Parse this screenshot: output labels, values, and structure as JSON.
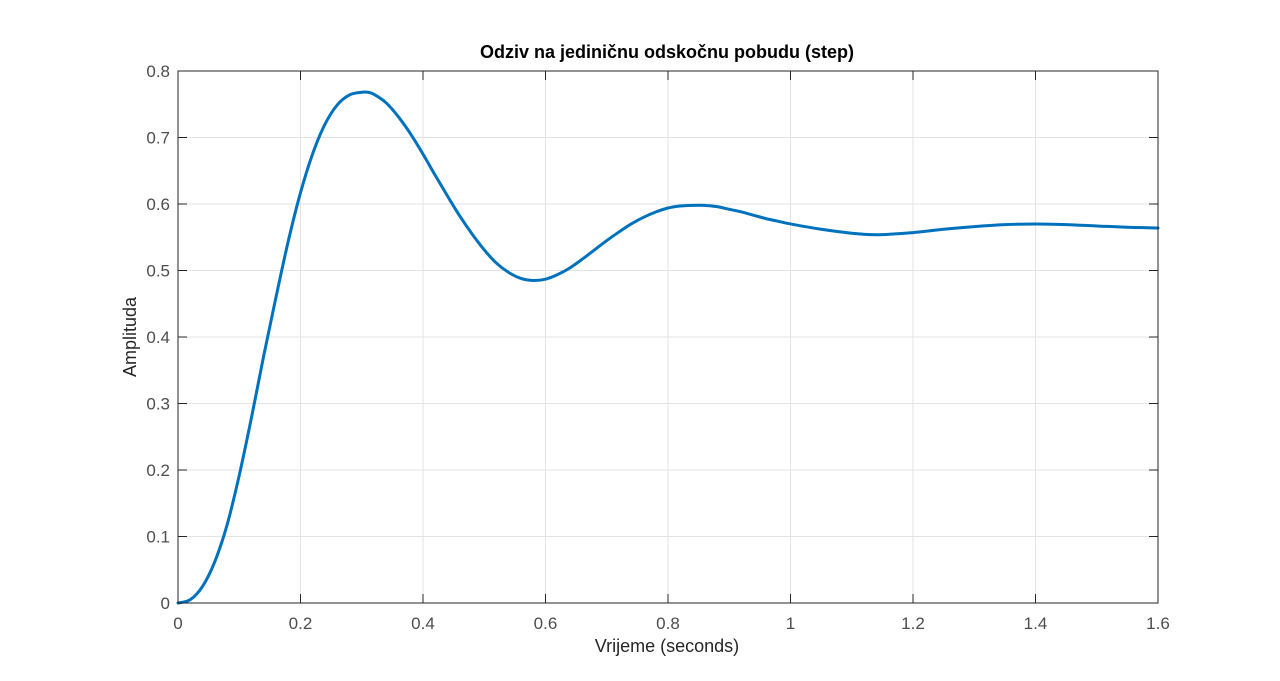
{
  "chart_data": {
    "type": "line",
    "title": "Odziv na jediničnu odskočnu pobudu (step)",
    "xlabel": "Vrijeme (seconds)",
    "ylabel": "Amplituda",
    "xlim": [
      0,
      1.6
    ],
    "ylim": [
      0,
      0.8
    ],
    "x_ticks": [
      0,
      0.2,
      0.4,
      0.6,
      0.8,
      1.0,
      1.2,
      1.4,
      1.6
    ],
    "x_tick_labels": [
      "0",
      "0.2",
      "0.4",
      "0.6",
      "0.8",
      "1",
      "1.2",
      "1.4",
      "1.6"
    ],
    "y_ticks": [
      0,
      0.1,
      0.2,
      0.3,
      0.4,
      0.5,
      0.6,
      0.7,
      0.8
    ],
    "y_tick_labels": [
      "0",
      "0.1",
      "0.2",
      "0.3",
      "0.4",
      "0.5",
      "0.6",
      "0.7",
      "0.8"
    ],
    "grid": true,
    "legend": "none",
    "colors": {
      "line": "#0072BD",
      "grid": "#e3e3e3",
      "axes": "#262626"
    },
    "series": [
      {
        "x": [
          0,
          0.02,
          0.04,
          0.06,
          0.08,
          0.1,
          0.12,
          0.14,
          0.16,
          0.18,
          0.2,
          0.22,
          0.24,
          0.26,
          0.28,
          0.3,
          0.31,
          0.32,
          0.34,
          0.36,
          0.38,
          0.4,
          0.42,
          0.44,
          0.46,
          0.48,
          0.5,
          0.52,
          0.54,
          0.56,
          0.58,
          0.6,
          0.62,
          0.64,
          0.66,
          0.68,
          0.7,
          0.72,
          0.74,
          0.76,
          0.78,
          0.8,
          0.82,
          0.84,
          0.86,
          0.88,
          0.9,
          0.92,
          0.94,
          0.96,
          0.98,
          1.0,
          1.05,
          1.1,
          1.13,
          1.15,
          1.2,
          1.25,
          1.3,
          1.35,
          1.4,
          1.45,
          1.5,
          1.55,
          1.6
        ],
        "values": [
          0,
          0.005,
          0.025,
          0.062,
          0.117,
          0.192,
          0.279,
          0.372,
          0.46,
          0.544,
          0.617,
          0.676,
          0.72,
          0.749,
          0.764,
          0.768,
          0.768,
          0.765,
          0.752,
          0.731,
          0.705,
          0.675,
          0.643,
          0.612,
          0.582,
          0.555,
          0.531,
          0.511,
          0.497,
          0.488,
          0.485,
          0.487,
          0.494,
          0.504,
          0.517,
          0.531,
          0.545,
          0.558,
          0.57,
          0.58,
          0.588,
          0.594,
          0.597,
          0.598,
          0.598,
          0.596,
          0.592,
          0.588,
          0.583,
          0.578,
          0.574,
          0.57,
          0.562,
          0.556,
          0.554,
          0.554,
          0.557,
          0.562,
          0.566,
          0.569,
          0.57,
          0.569,
          0.567,
          0.565,
          0.564
        ]
      }
    ]
  }
}
